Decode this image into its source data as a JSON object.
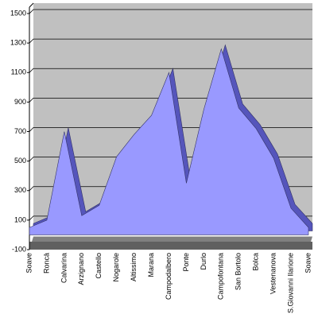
{
  "chart_data": {
    "type": "area",
    "categories": [
      "Soave",
      "Roncà",
      "Calvarina",
      "Arzignano",
      "Castello",
      "Nogarole",
      "Altissimo",
      "Marana",
      "Campodalbero",
      "Ponte",
      "Durlo",
      "Campofontana",
      "San Bortolo",
      "Bolca",
      "Vestenanova",
      "S.Giovanni Ilarione",
      "Soave"
    ],
    "values": [
      50,
      100,
      700,
      130,
      200,
      530,
      680,
      810,
      1100,
      350,
      850,
      1260,
      860,
      720,
      520,
      180,
      50
    ],
    "color": "#9999ff",
    "ylim": [
      -100,
      1500
    ],
    "yticks": [
      -100,
      100,
      300,
      500,
      700,
      900,
      1100,
      1300,
      1500
    ],
    "grid": true
  }
}
